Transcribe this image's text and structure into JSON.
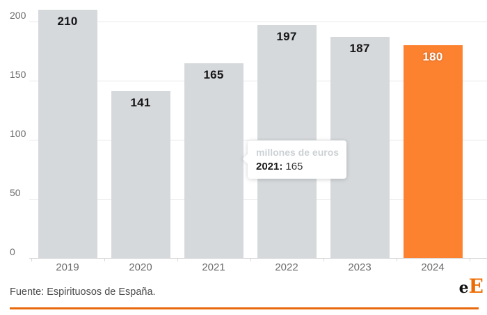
{
  "chart_data": {
    "type": "bar",
    "title": "",
    "unit_label": "millones de euros",
    "categories": [
      "2019",
      "2020",
      "2021",
      "2022",
      "2023",
      "2024"
    ],
    "values": [
      210,
      141,
      165,
      197,
      187,
      180
    ],
    "xlabel": "",
    "ylabel": "",
    "ylim": [
      0,
      200
    ],
    "yticks": [
      0,
      50,
      100,
      150,
      200
    ],
    "grid": "on",
    "legend": "none",
    "highlight_index": 5,
    "colors": {
      "bar_default": "#d6d9dc",
      "bar_highlight": "#fd8230",
      "value_label": "#141414",
      "value_label_highlight": "#ffffff",
      "axis_text": "#6b6b6b"
    }
  },
  "tooltip": {
    "header": "millones de euros",
    "label": "2021:",
    "value": "165"
  },
  "footer": {
    "source": "Fuente: Espirituosos de España.",
    "logo_black": "e",
    "logo_orange": "E",
    "logo_orange_color": "#ed6d05",
    "rule_color": "#e8690b"
  }
}
